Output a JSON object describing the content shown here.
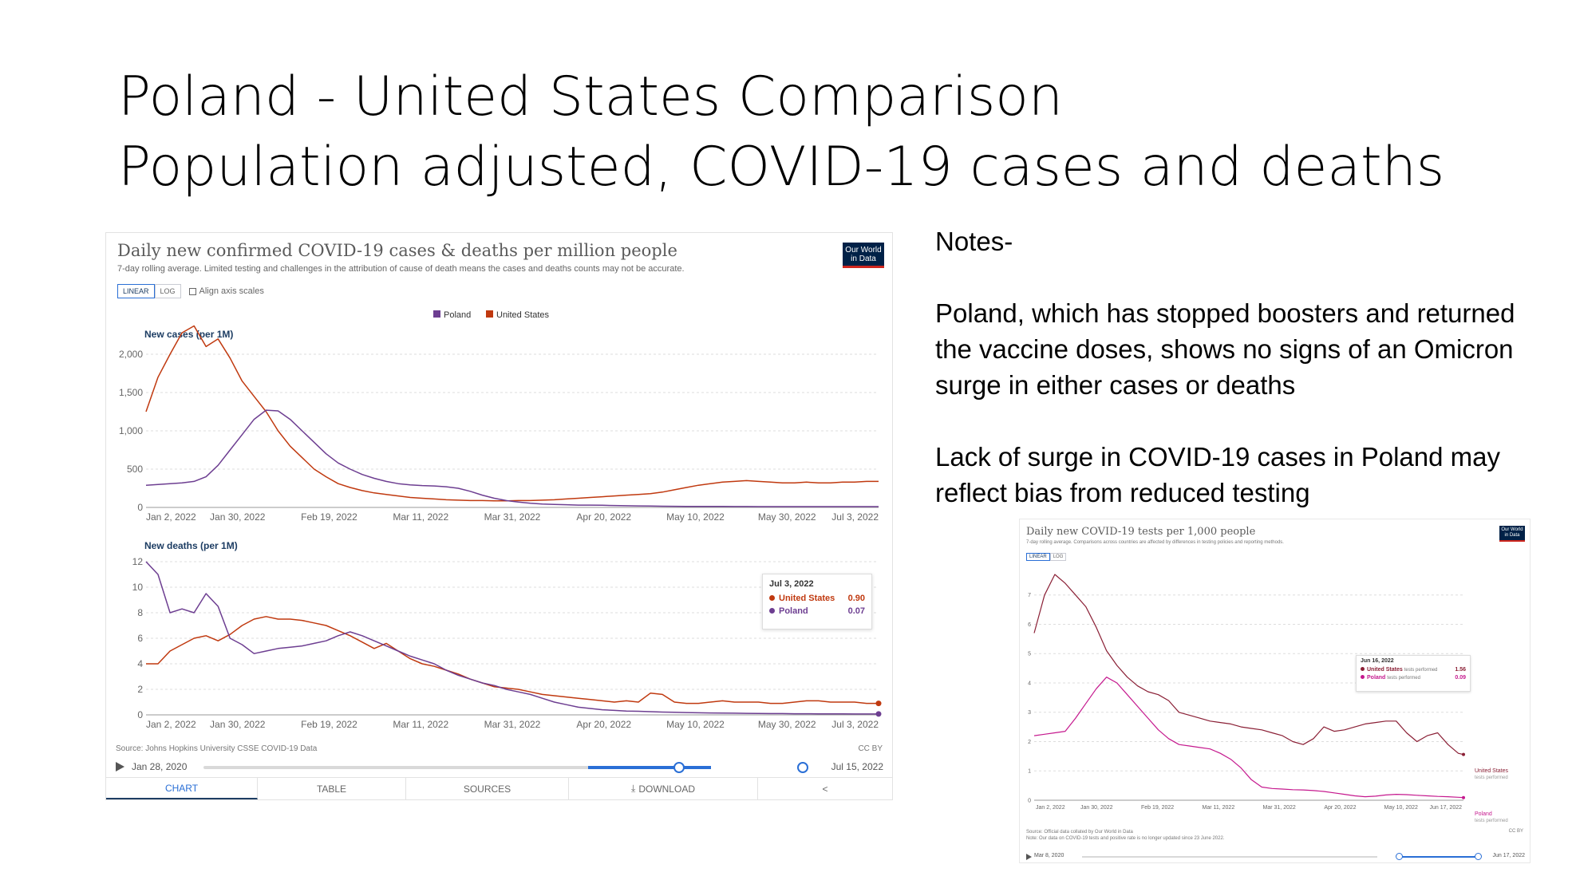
{
  "slide": {
    "title_line1": "Poland - United States Comparison",
    "title_line2": "Population adjusted, COVID-19 cases and deaths",
    "notes": [
      "Notes-",
      "Poland, which has stopped boosters and returned the vaccine doses, shows no signs of an Omicron surge in either cases or deaths",
      "Lack of surge in COVID-19 cases in Poland may reflect bias from reduced testing"
    ]
  },
  "colors": {
    "poland": "#6d3e91",
    "united_states": "#c0390f",
    "poland_tests": "#c5198e",
    "united_states_tests": "#8a1f35",
    "accent": "#2a6fd6",
    "navy": "#1d3d63"
  },
  "main_chart": {
    "title": "Daily new confirmed COVID-19 cases & deaths per million people",
    "subtitle": "7-day rolling average. Limited testing and challenges in the attribution of cause of death means the cases and deaths counts may not be accurate.",
    "logo_line1": "Our World",
    "logo_line2": "in Data",
    "toggle_linear": "LINEAR",
    "toggle_log": "LOG",
    "align_label": "Align axis scales",
    "legend": [
      "Poland",
      "United States"
    ],
    "source": "Source: Johns Hopkins University CSSE COVID-19 Data",
    "license": "CC BY",
    "timeline_start": "Jan 28, 2020",
    "timeline_end": "Jul 15, 2022",
    "tabs": [
      "CHART",
      "TABLE",
      "SOURCES",
      "DOWNLOAD",
      ""
    ],
    "tooltip": {
      "date": "Jul 3, 2022",
      "rows": [
        {
          "name": "United States",
          "value": "0.90"
        },
        {
          "name": "Poland",
          "value": "0.07"
        }
      ]
    }
  },
  "tests_chart": {
    "title": "Daily new COVID-19 tests per 1,000 people",
    "subtitle": "7-day rolling average. Comparisons across countries are affected by differences in testing policies and reporting methods.",
    "logo_line1": "Our World",
    "logo_line2": "in Data",
    "toggle_linear": "LINEAR",
    "toggle_log": "LOG",
    "source_line1": "Source: Official data collated by Our World in Data",
    "source_line2": "Note: Our data on COVID-19 tests and positive rate is no longer updated since 23 June 2022.",
    "license": "CC BY",
    "timeline_start": "Mar 8, 2020",
    "timeline_end": "Jun 17, 2022",
    "tooltip": {
      "date": "Jun 16, 2022",
      "rows": [
        {
          "name": "United States",
          "note": "tests performed",
          "value": "1.56"
        },
        {
          "name": "Poland",
          "note": "tests performed",
          "value": "0.09"
        }
      ]
    },
    "end_labels": [
      {
        "name": "United States",
        "note": "tests performed"
      },
      {
        "name": "Poland",
        "note": "tests performed"
      }
    ]
  },
  "chart_data": [
    {
      "type": "line",
      "title": "New cases (per 1M)",
      "categories": [
        "Jan 2, 2022",
        "Jan 30, 2022",
        "Feb 19, 2022",
        "Mar 11, 2022",
        "Mar 31, 2022",
        "Apr 20, 2022",
        "May 10, 2022",
        "May 30, 2022",
        "Jul 3, 2022"
      ],
      "ylim": [
        0,
        2500
      ],
      "yticks": [
        0,
        500,
        "1,000",
        "1,500",
        "2,000"
      ],
      "x": [
        0,
        3,
        6,
        9,
        12,
        15,
        18,
        21,
        24,
        27,
        30,
        33,
        36,
        39,
        42,
        45,
        48,
        51,
        54,
        57,
        60,
        63,
        66,
        69,
        72,
        75,
        78,
        81,
        84,
        87,
        90,
        93,
        96,
        99,
        102,
        105,
        108,
        111,
        114,
        117,
        120,
        123,
        126,
        129,
        132,
        135,
        138,
        141,
        144,
        147,
        150,
        153,
        156,
        159,
        162,
        165,
        168,
        171,
        174,
        177,
        180,
        183
      ],
      "series": [
        {
          "name": "United States",
          "values": [
            1250,
            1700,
            2000,
            2280,
            2370,
            2100,
            2200,
            1950,
            1650,
            1450,
            1250,
            1000,
            800,
            650,
            500,
            400,
            310,
            260,
            220,
            190,
            170,
            150,
            130,
            120,
            110,
            100,
            95,
            90,
            90,
            85,
            85,
            90,
            90,
            95,
            100,
            110,
            120,
            130,
            140,
            150,
            160,
            170,
            180,
            200,
            230,
            260,
            290,
            310,
            330,
            340,
            350,
            340,
            330,
            320,
            320,
            330,
            320,
            320,
            330,
            330,
            340,
            340
          ]
        },
        {
          "name": "Poland",
          "values": [
            290,
            300,
            310,
            320,
            340,
            400,
            550,
            750,
            950,
            1150,
            1270,
            1260,
            1150,
            1000,
            850,
            700,
            580,
            500,
            430,
            380,
            340,
            310,
            295,
            285,
            280,
            270,
            250,
            210,
            160,
            120,
            90,
            70,
            55,
            45,
            40,
            35,
            30,
            30,
            28,
            25,
            22,
            20,
            18,
            16,
            15,
            14,
            13,
            12,
            12,
            11,
            11,
            10,
            10,
            10,
            10,
            10,
            10,
            10,
            10,
            10,
            10,
            10
          ]
        }
      ]
    },
    {
      "type": "line",
      "title": "New deaths (per 1M)",
      "categories": [
        "Jan 2, 2022",
        "Jan 30, 2022",
        "Feb 19, 2022",
        "Mar 11, 2022",
        "Mar 31, 2022",
        "Apr 20, 2022",
        "May 10, 2022",
        "May 30, 2022",
        "Jul 3, 2022"
      ],
      "ylim": [
        0,
        12
      ],
      "yticks": [
        0,
        2,
        4,
        6,
        8,
        10,
        12
      ],
      "x": [
        0,
        3,
        6,
        9,
        12,
        15,
        18,
        21,
        24,
        27,
        30,
        33,
        36,
        39,
        42,
        45,
        48,
        51,
        54,
        57,
        60,
        63,
        66,
        69,
        72,
        75,
        78,
        81,
        84,
        87,
        90,
        93,
        96,
        99,
        102,
        105,
        108,
        111,
        114,
        117,
        120,
        123,
        126,
        129,
        132,
        135,
        138,
        141,
        144,
        147,
        150,
        153,
        156,
        159,
        162,
        165,
        168,
        171,
        174,
        177,
        180,
        183
      ],
      "series": [
        {
          "name": "United States",
          "values": [
            4.0,
            4.0,
            5.0,
            5.5,
            6.0,
            6.2,
            5.8,
            6.3,
            7.0,
            7.5,
            7.7,
            7.5,
            7.5,
            7.4,
            7.2,
            7.0,
            6.6,
            6.2,
            5.7,
            5.2,
            5.6,
            5.0,
            4.4,
            4.0,
            3.8,
            3.5,
            3.2,
            2.8,
            2.5,
            2.2,
            2.1,
            2.0,
            1.8,
            1.6,
            1.5,
            1.4,
            1.3,
            1.2,
            1.1,
            1.0,
            1.1,
            1.0,
            1.7,
            1.6,
            1.0,
            0.9,
            0.9,
            1.0,
            1.1,
            1.0,
            1.0,
            1.0,
            0.9,
            0.9,
            1.0,
            1.1,
            1.1,
            1.0,
            1.0,
            1.0,
            0.9,
            0.9
          ]
        },
        {
          "name": "Poland",
          "values": [
            12.0,
            11.0,
            8.0,
            8.3,
            8.0,
            9.5,
            8.5,
            6.0,
            5.5,
            4.8,
            5.0,
            5.2,
            5.3,
            5.4,
            5.6,
            5.8,
            6.2,
            6.5,
            6.2,
            5.8,
            5.4,
            5.0,
            4.6,
            4.3,
            4.0,
            3.5,
            3.1,
            2.8,
            2.5,
            2.3,
            2.0,
            1.8,
            1.6,
            1.3,
            1.0,
            0.8,
            0.6,
            0.5,
            0.4,
            0.35,
            0.3,
            0.28,
            0.25,
            0.22,
            0.2,
            0.18,
            0.16,
            0.15,
            0.14,
            0.13,
            0.12,
            0.11,
            0.1,
            0.1,
            0.09,
            0.09,
            0.08,
            0.08,
            0.08,
            0.07,
            0.07,
            0.07
          ]
        }
      ]
    },
    {
      "type": "line",
      "title": "Daily new COVID-19 tests per 1,000 people",
      "categories": [
        "Jan 2, 2022",
        "Jan 30, 2022",
        "Feb 19, 2022",
        "Mar 11, 2022",
        "Mar 31, 2022",
        "Apr 20, 2022",
        "May 10, 2022",
        "Jun 17, 2022"
      ],
      "ylim": [
        0,
        8
      ],
      "yticks": [
        0,
        1,
        2,
        3,
        4,
        5,
        6,
        7
      ],
      "x": [
        0,
        4,
        8,
        12,
        16,
        20,
        24,
        28,
        32,
        36,
        40,
        44,
        48,
        52,
        56,
        60,
        64,
        68,
        72,
        76,
        80,
        84,
        88,
        92,
        96,
        100,
        104,
        108,
        112,
        116,
        120,
        124,
        128,
        132,
        136,
        140,
        144,
        148,
        152,
        156,
        160,
        164,
        166
      ],
      "series": [
        {
          "name": "United States",
          "values": [
            5.7,
            7.0,
            7.7,
            7.4,
            7.0,
            6.6,
            5.9,
            5.1,
            4.6,
            4.2,
            3.9,
            3.7,
            3.6,
            3.4,
            3.0,
            2.9,
            2.8,
            2.7,
            2.65,
            2.6,
            2.5,
            2.45,
            2.4,
            2.3,
            2.2,
            2.0,
            1.9,
            2.1,
            2.5,
            2.35,
            2.4,
            2.5,
            2.6,
            2.65,
            2.7,
            2.7,
            2.3,
            2.0,
            2.2,
            2.3,
            1.9,
            1.6,
            1.56
          ]
        },
        {
          "name": "Poland",
          "values": [
            2.2,
            2.25,
            2.3,
            2.35,
            2.8,
            3.3,
            3.8,
            4.2,
            4.0,
            3.6,
            3.2,
            2.8,
            2.4,
            2.1,
            1.9,
            1.85,
            1.8,
            1.75,
            1.6,
            1.4,
            1.1,
            0.7,
            0.45,
            0.4,
            0.38,
            0.36,
            0.35,
            0.33,
            0.3,
            0.25,
            0.2,
            0.15,
            0.12,
            0.14,
            0.18,
            0.2,
            0.19,
            0.17,
            0.15,
            0.13,
            0.12,
            0.1,
            0.09
          ]
        }
      ]
    }
  ]
}
